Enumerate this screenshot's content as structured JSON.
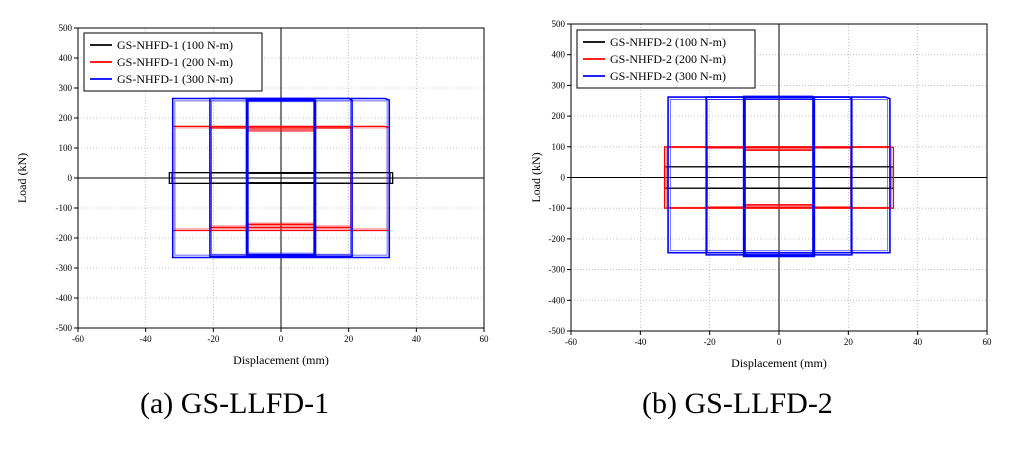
{
  "chart_data": [
    {
      "type": "line",
      "caption": "(a) GS-LLFD-1",
      "xlabel": "Displacement (mm)",
      "ylabel": "Load (kN)",
      "xlim": [
        -60,
        60
      ],
      "ylim": [
        -500,
        500
      ],
      "xticks": [
        -60,
        -40,
        -20,
        0,
        20,
        40,
        60
      ],
      "yticks": [
        500,
        400,
        300,
        200,
        100,
        0,
        -100,
        -200,
        -300,
        -400,
        -500
      ],
      "grid": true,
      "legend_position": "top-left",
      "series": [
        {
          "name": "GS-NHFD-1 (100 N-m)",
          "color": "#000000",
          "loops": [
            {
              "disp": 10,
              "upper": 16,
              "lower": -16
            },
            {
              "disp": 21,
              "upper": 17,
              "lower": -17
            },
            {
              "disp": 33,
              "upper": 18,
              "lower": -18
            }
          ]
        },
        {
          "name": "GS-NHFD-1 (200 N-m)",
          "color": "#ff0000",
          "loops": [
            {
              "disp": 10,
              "upper": 160,
              "lower": -155
            },
            {
              "disp": 21,
              "upper": 170,
              "lower": -165
            },
            {
              "disp": 32,
              "upper": 172,
              "lower": -175
            }
          ]
        },
        {
          "name": "GS-NHFD-1 (300 N-m)",
          "color": "#0000ff",
          "loops": [
            {
              "disp": 10,
              "upper": 262,
              "lower": -258
            },
            {
              "disp": 21,
              "upper": 265,
              "lower": -262
            },
            {
              "disp": 32,
              "upper": 265,
              "lower": -265
            }
          ]
        }
      ]
    },
    {
      "type": "line",
      "caption": "(b) GS-LLFD-2",
      "xlabel": "Displacement (mm)",
      "ylabel": "Load (kN)",
      "xlim": [
        -60,
        60
      ],
      "ylim": [
        -500,
        500
      ],
      "xticks": [
        -60,
        -40,
        -20,
        0,
        20,
        40,
        60
      ],
      "yticks": [
        500,
        400,
        300,
        200,
        100,
        0,
        -100,
        -200,
        -300,
        -400,
        -500
      ],
      "grid": true,
      "legend_position": "top-left",
      "series": [
        {
          "name": "GS-NHFD-2 (100 N-m)",
          "color": "#000000",
          "loops": [
            {
              "disp": 10,
              "upper": 35,
              "lower": -35
            },
            {
              "disp": 21,
              "upper": 35,
              "lower": -35
            },
            {
              "disp": 33,
              "upper": 35,
              "lower": -35
            }
          ]
        },
        {
          "name": "GS-NHFD-2 (200 N-m)",
          "color": "#ff0000",
          "loops": [
            {
              "disp": 10,
              "upper": 90,
              "lower": -90
            },
            {
              "disp": 21,
              "upper": 98,
              "lower": -98
            },
            {
              "disp": 33,
              "upper": 100,
              "lower": -100
            }
          ]
        },
        {
          "name": "GS-NHFD-2 (300 N-m)",
          "color": "#0000ff",
          "loops": [
            {
              "disp": 10,
              "upper": 262,
              "lower": -255
            },
            {
              "disp": 21,
              "upper": 262,
              "lower": -252
            },
            {
              "disp": 32,
              "upper": 262,
              "lower": -245
            }
          ]
        }
      ]
    }
  ]
}
